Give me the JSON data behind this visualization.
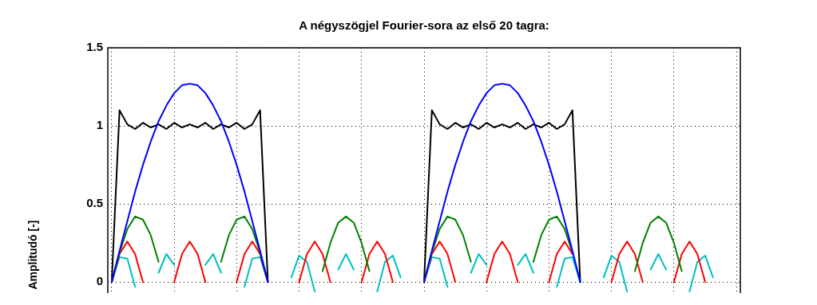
{
  "chart_data": {
    "type": "line",
    "title": "A négyszögjel Fourier-sora az első 20 tagra:",
    "ylabel": "Amplitudó [-]",
    "categories": [
      null,
      null,
      null,
      null,
      null,
      null,
      null,
      null,
      null,
      null,
      null,
      null,
      null,
      null,
      null,
      null,
      null,
      null,
      null,
      null,
      null,
      null,
      null,
      null,
      null,
      null,
      null,
      null,
      null,
      null,
      null,
      null,
      null,
      null,
      null,
      null,
      null,
      null,
      null,
      null,
      null,
      null,
      null,
      null,
      null,
      null,
      null,
      null,
      null,
      null,
      null,
      null,
      null,
      null,
      null,
      null,
      null,
      null,
      null,
      null,
      null,
      null,
      null,
      null,
      null,
      null,
      null,
      null,
      null,
      null,
      null,
      null,
      null,
      null,
      null,
      null,
      null,
      null,
      null,
      null,
      null
    ],
    "ylim": [
      -0.07,
      1.5
    ],
    "yticks": [
      0,
      0.5,
      {
        "value": 1,
        "label": "1"
      },
      1.5
    ],
    "grid": true,
    "tick_labels": "y",
    "series": [
      {
        "color": "#0000ff",
        "values": [
          0,
          0.2,
          0.39,
          0.58,
          0.75,
          0.9,
          1.03,
          1.13,
          1.21,
          1.26,
          1.27,
          1.26,
          1.21,
          1.13,
          1.03,
          0.9,
          0.75,
          0.58,
          0.39,
          0.2,
          0,
          null,
          null,
          null,
          null,
          null,
          null,
          null,
          null,
          null,
          null,
          null,
          null,
          null,
          null,
          null,
          null,
          null,
          null,
          null,
          0,
          0.2,
          0.39,
          0.58,
          0.75,
          0.9,
          1.03,
          1.13,
          1.21,
          1.26,
          1.27,
          1.26,
          1.21,
          1.13,
          1.03,
          0.9,
          0.75,
          0.58,
          0.39,
          0.2,
          0,
          null,
          null,
          null,
          null,
          null,
          null,
          null,
          null,
          null,
          null,
          null,
          null,
          null,
          null,
          null,
          null,
          null,
          null,
          null,
          null
        ]
      },
      {
        "color": "#008000",
        "values": [
          0,
          0.19,
          0.34,
          0.42,
          0.4,
          0.3,
          0.13,
          null,
          null,
          null,
          null,
          null,
          null,
          null,
          0.13,
          0.3,
          0.4,
          0.42,
          0.34,
          0.19,
          0,
          null,
          null,
          null,
          null,
          null,
          null,
          0.07,
          0.25,
          0.38,
          0.42,
          0.38,
          0.25,
          0.07,
          null,
          null,
          null,
          null,
          null,
          null,
          0,
          0.19,
          0.34,
          0.42,
          0.4,
          0.3,
          0.13,
          null,
          null,
          null,
          null,
          null,
          null,
          null,
          0.13,
          0.3,
          0.4,
          0.42,
          0.34,
          0.19,
          null,
          null,
          null,
          null,
          null,
          null,
          null,
          0.07,
          0.25,
          0.38,
          0.42,
          0.38,
          0.25,
          0.07,
          null,
          null,
          null,
          null,
          null,
          null,
          null
        ]
      },
      {
        "color": "#ff0000",
        "values": [
          0,
          0.18,
          0.26,
          0.18,
          0,
          null,
          null,
          null,
          0,
          0.18,
          0.26,
          0.18,
          0,
          null,
          null,
          null,
          0,
          0.18,
          0.26,
          0.18,
          0,
          null,
          null,
          null,
          0,
          0.18,
          0.26,
          0.18,
          0,
          null,
          null,
          null,
          0,
          0.18,
          0.26,
          0.18,
          0,
          null,
          null,
          null,
          0,
          0.18,
          0.26,
          0.18,
          0,
          null,
          null,
          null,
          0,
          0.18,
          0.26,
          0.18,
          0,
          null,
          null,
          null,
          0,
          0.18,
          0.26,
          0.18,
          null,
          null,
          null,
          null,
          0,
          0.18,
          0.26,
          0.18,
          0,
          null,
          null,
          null,
          0,
          0.18,
          0.26,
          0.18,
          0,
          null,
          null,
          null,
          null
        ]
      },
      {
        "color": "#00bfbf",
        "values": [
          0,
          0.16,
          0.15,
          -0.03,
          null,
          null,
          0.06,
          0.18,
          0.11,
          null,
          null,
          null,
          0.11,
          0.18,
          0.06,
          null,
          null,
          -0.03,
          0.15,
          0.16,
          0,
          null,
          null,
          0.03,
          0.17,
          0.13,
          -0.06,
          null,
          null,
          0.08,
          0.18,
          0.08,
          null,
          null,
          -0.06,
          0.13,
          0.17,
          0.03,
          null,
          null,
          0,
          0.16,
          0.15,
          -0.03,
          null,
          null,
          0.06,
          0.18,
          0.11,
          null,
          null,
          null,
          0.11,
          0.18,
          0.06,
          null,
          null,
          -0.03,
          0.15,
          0.16,
          0,
          null,
          null,
          0.03,
          0.17,
          0.13,
          -0.06,
          null,
          null,
          0.08,
          0.18,
          0.08,
          null,
          null,
          -0.06,
          0.13,
          0.17,
          0.03,
          null,
          null,
          null
        ]
      },
      {
        "color": "#000000",
        "values": [
          0,
          1.1,
          1.01,
          0.98,
          1.02,
          0.99,
          1.01,
          0.98,
          1.02,
          0.99,
          1.01,
          0.99,
          1.02,
          0.98,
          1.01,
          0.99,
          1.02,
          0.98,
          1.01,
          1.1,
          0,
          null,
          null,
          null,
          null,
          null,
          null,
          null,
          null,
          null,
          null,
          null,
          null,
          null,
          null,
          null,
          null,
          null,
          null,
          null,
          0,
          1.1,
          1.01,
          0.98,
          1.02,
          0.99,
          1.01,
          0.98,
          1.02,
          0.99,
          1.01,
          0.99,
          1.02,
          0.98,
          1.01,
          0.99,
          1.02,
          0.98,
          1.01,
          1.1,
          0,
          null,
          null,
          null,
          null,
          null,
          null,
          null,
          null,
          null,
          null,
          null,
          null,
          null,
          null,
          null,
          null,
          null,
          null,
          null,
          null
        ]
      }
    ]
  }
}
